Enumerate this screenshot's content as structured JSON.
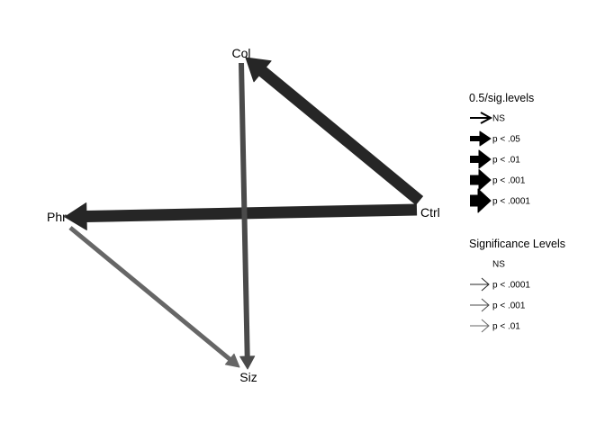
{
  "nodes": [
    {
      "id": "Col",
      "label": "Col"
    },
    {
      "id": "Ctrl",
      "label": "Ctrl"
    },
    {
      "id": "Phr",
      "label": "Phr"
    },
    {
      "id": "Siz",
      "label": "Siz"
    }
  ],
  "edges": [
    {
      "from": "Ctrl",
      "to": "Col",
      "weight_level": "p < .0001",
      "shade_level": "p < .0001",
      "color": "#262626"
    },
    {
      "from": "Ctrl",
      "to": "Phr",
      "weight_level": "p < .0001",
      "shade_level": "p < .0001",
      "color": "#262626"
    },
    {
      "from": "Col",
      "to": "Siz",
      "weight_level": "p < .05",
      "shade_level": "p < .001",
      "color": "#4a4a4a"
    },
    {
      "from": "Phr",
      "to": "Siz",
      "weight_level": "p < .05",
      "shade_level": "p < .01",
      "color": "#666666"
    }
  ],
  "legends": {
    "weight": {
      "title": "0.5/sig.levels",
      "items": [
        {
          "label": "NS"
        },
        {
          "label": "p < .05"
        },
        {
          "label": "p < .01"
        },
        {
          "label": "p < .001"
        },
        {
          "label": "p < .0001"
        }
      ]
    },
    "significance": {
      "title": "Significance Levels",
      "items": [
        {
          "label": "NS",
          "color": "#ffffff"
        },
        {
          "label": "p < .0001",
          "color": "#262626"
        },
        {
          "label": "p < .001",
          "color": "#4a4a4a"
        },
        {
          "label": "p < .01",
          "color": "#666666"
        }
      ]
    }
  }
}
